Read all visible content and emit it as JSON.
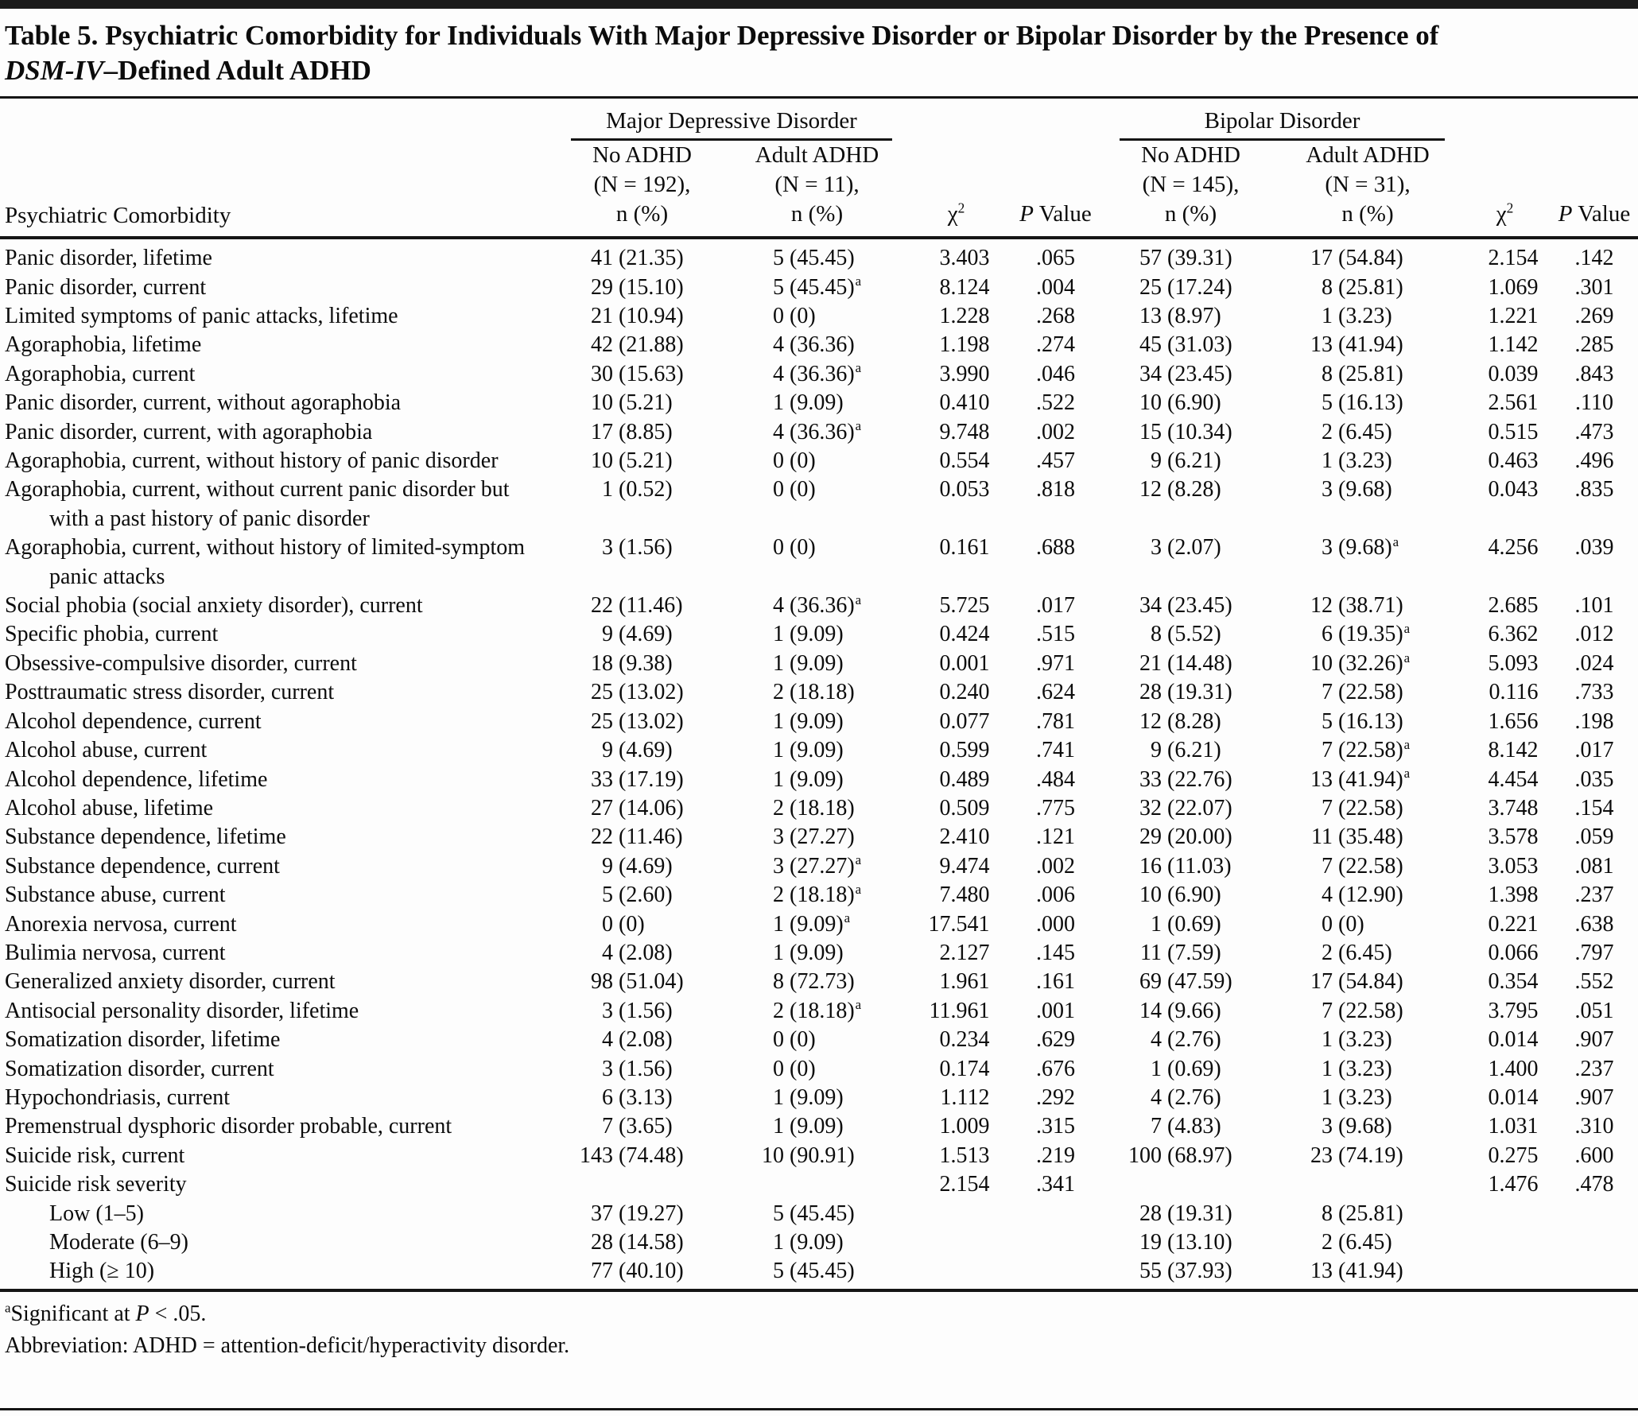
{
  "title": {
    "line1": "Table 5. Psychiatric Comorbidity for Individuals With Major Depressive Disorder or Bipolar Disorder by the Presence of",
    "line2_italic": "DSM-IV",
    "line2_rest": "–Defined Adult ADHD"
  },
  "header": {
    "stub": "Psychiatric Comorbidity",
    "group1": "Major Depressive Disorder",
    "group2": "Bipolar Disorder",
    "col_no_adhd_mdd": "No ADHD\n(N = 192),\nn (%)",
    "col_adult_adhd_mdd": "Adult ADHD\n(N = 11),\nn (%)",
    "col_no_adhd_bd": "No ADHD\n(N = 145),\nn (%)",
    "col_adult_adhd_bd": "Adult ADHD\n(N = 31),\nn (%)",
    "chi_base": "χ",
    "chi_sup": "2",
    "p_italic": "P",
    "p_rest": " Value"
  },
  "rows": [
    {
      "label": "Panic disorder, lifetime",
      "indent": false,
      "cells": [
        "41 (21.35)",
        "5 (45.45)",
        "3.403",
        ".065",
        "57 (39.31)",
        "17 (54.84)",
        "2.154",
        ".142"
      ]
    },
    {
      "label": "Panic disorder, current",
      "indent": false,
      "cells": [
        "29 (15.10)",
        "5 (45.45)^a",
        "8.124",
        ".004",
        "25 (17.24)",
        "8 (25.81)",
        "1.069",
        ".301"
      ]
    },
    {
      "label": "Limited symptoms of panic attacks, lifetime",
      "indent": false,
      "cells": [
        "21 (10.94)",
        "0 (0)",
        "1.228",
        ".268",
        "13 (8.97)",
        "1 (3.23)",
        "1.221",
        ".269"
      ]
    },
    {
      "label": "Agoraphobia, lifetime",
      "indent": false,
      "cells": [
        "42 (21.88)",
        "4 (36.36)",
        "1.198",
        ".274",
        "45 (31.03)",
        "13 (41.94)",
        "1.142",
        ".285"
      ]
    },
    {
      "label": "Agoraphobia, current",
      "indent": false,
      "cells": [
        "30 (15.63)",
        "4 (36.36)^a",
        "3.990",
        ".046",
        "34 (23.45)",
        "8 (25.81)",
        "0.039",
        ".843"
      ]
    },
    {
      "label": "Panic disorder, current, without agoraphobia",
      "indent": false,
      "cells": [
        "10 (5.21)",
        "1 (9.09)",
        "0.410",
        ".522",
        "10 (6.90)",
        "5 (16.13)",
        "2.561",
        ".110"
      ]
    },
    {
      "label": "Panic disorder, current, with agoraphobia",
      "indent": false,
      "cells": [
        "17 (8.85)",
        "4 (36.36)^a",
        "9.748",
        ".002",
        "15 (10.34)",
        "2 (6.45)",
        "0.515",
        ".473"
      ]
    },
    {
      "label": "Agoraphobia, current, without history of panic disorder",
      "indent": false,
      "cells": [
        "10 (5.21)",
        "0 (0)",
        "0.554",
        ".457",
        "9 (6.21)",
        "1 (3.23)",
        "0.463",
        ".496"
      ]
    },
    {
      "label": "Agoraphobia, current, without current panic disorder but with a past history of panic disorder",
      "indent": false,
      "cells": [
        "1 (0.52)",
        "0 (0)",
        "0.053",
        ".818",
        "12 (8.28)",
        "3 (9.68)",
        "0.043",
        ".835"
      ]
    },
    {
      "label": "Agoraphobia, current, without history of limited-symptom panic attacks",
      "indent": false,
      "cells": [
        "3 (1.56)",
        "0 (0)",
        "0.161",
        ".688",
        "3 (2.07)",
        "3 (9.68)^a",
        "4.256",
        ".039"
      ]
    },
    {
      "label": "Social phobia (social anxiety disorder), current",
      "indent": false,
      "cells": [
        "22 (11.46)",
        "4 (36.36)^a",
        "5.725",
        ".017",
        "34 (23.45)",
        "12 (38.71)",
        "2.685",
        ".101"
      ]
    },
    {
      "label": "Specific phobia, current",
      "indent": false,
      "cells": [
        "9 (4.69)",
        "1 (9.09)",
        "0.424",
        ".515",
        "8 (5.52)",
        "6 (19.35)^a",
        "6.362",
        ".012"
      ]
    },
    {
      "label": "Obsessive-compulsive disorder, current",
      "indent": false,
      "cells": [
        "18 (9.38)",
        "1 (9.09)",
        "0.001",
        ".971",
        "21 (14.48)",
        "10 (32.26)^a",
        "5.093",
        ".024"
      ]
    },
    {
      "label": "Posttraumatic stress disorder, current",
      "indent": false,
      "cells": [
        "25 (13.02)",
        "2 (18.18)",
        "0.240",
        ".624",
        "28 (19.31)",
        "7 (22.58)",
        "0.116",
        ".733"
      ]
    },
    {
      "label": "Alcohol dependence, current",
      "indent": false,
      "cells": [
        "25 (13.02)",
        "1 (9.09)",
        "0.077",
        ".781",
        "12 (8.28)",
        "5 (16.13)",
        "1.656",
        ".198"
      ]
    },
    {
      "label": "Alcohol abuse, current",
      "indent": false,
      "cells": [
        "9 (4.69)",
        "1 (9.09)",
        "0.599",
        ".741",
        "9 (6.21)",
        "7 (22.58)^a",
        "8.142",
        ".017"
      ]
    },
    {
      "label": "Alcohol dependence, lifetime",
      "indent": false,
      "cells": [
        "33 (17.19)",
        "1 (9.09)",
        "0.489",
        ".484",
        "33 (22.76)",
        "13 (41.94)^a",
        "4.454",
        ".035"
      ]
    },
    {
      "label": "Alcohol abuse, lifetime",
      "indent": false,
      "cells": [
        "27 (14.06)",
        "2 (18.18)",
        "0.509",
        ".775",
        "32 (22.07)",
        "7 (22.58)",
        "3.748",
        ".154"
      ]
    },
    {
      "label": "Substance dependence, lifetime",
      "indent": false,
      "cells": [
        "22 (11.46)",
        "3 (27.27)",
        "2.410",
        ".121",
        "29 (20.00)",
        "11 (35.48)",
        "3.578",
        ".059"
      ]
    },
    {
      "label": "Substance dependence, current",
      "indent": false,
      "cells": [
        "9 (4.69)",
        "3 (27.27)^a",
        "9.474",
        ".002",
        "16 (11.03)",
        "7 (22.58)",
        "3.053",
        ".081"
      ]
    },
    {
      "label": "Substance abuse, current",
      "indent": false,
      "cells": [
        "5 (2.60)",
        "2 (18.18)^a",
        "7.480",
        ".006",
        "10 (6.90)",
        "4 (12.90)",
        "1.398",
        ".237"
      ]
    },
    {
      "label": "Anorexia nervosa, current",
      "indent": false,
      "cells": [
        "0 (0)",
        "1 (9.09)^a",
        "17.541",
        ".000",
        "1 (0.69)",
        "0 (0)",
        "0.221",
        ".638"
      ]
    },
    {
      "label": "Bulimia nervosa, current",
      "indent": false,
      "cells": [
        "4 (2.08)",
        "1 (9.09)",
        "2.127",
        ".145",
        "11 (7.59)",
        "2 (6.45)",
        "0.066",
        ".797"
      ]
    },
    {
      "label": "Generalized anxiety disorder, current",
      "indent": false,
      "cells": [
        "98 (51.04)",
        "8 (72.73)",
        "1.961",
        ".161",
        "69 (47.59)",
        "17 (54.84)",
        "0.354",
        ".552"
      ]
    },
    {
      "label": "Antisocial personality disorder, lifetime",
      "indent": false,
      "cells": [
        "3 (1.56)",
        "2 (18.18)^a",
        "11.961",
        ".001",
        "14 (9.66)",
        "7 (22.58)",
        "3.795",
        ".051"
      ]
    },
    {
      "label": "Somatization disorder, lifetime",
      "indent": false,
      "cells": [
        "4 (2.08)",
        "0 (0)",
        "0.234",
        ".629",
        "4 (2.76)",
        "1 (3.23)",
        "0.014",
        ".907"
      ]
    },
    {
      "label": "Somatization disorder, current",
      "indent": false,
      "cells": [
        "3 (1.56)",
        "0 (0)",
        "0.174",
        ".676",
        "1 (0.69)",
        "1 (3.23)",
        "1.400",
        ".237"
      ]
    },
    {
      "label": "Hypochondriasis, current",
      "indent": false,
      "cells": [
        "6 (3.13)",
        "1 (9.09)",
        "1.112",
        ".292",
        "4 (2.76)",
        "1 (3.23)",
        "0.014",
        ".907"
      ]
    },
    {
      "label": "Premenstrual dysphoric disorder probable, current",
      "indent": false,
      "cells": [
        "7 (3.65)",
        "1 (9.09)",
        "1.009",
        ".315",
        "7 (4.83)",
        "3 (9.68)",
        "1.031",
        ".310"
      ]
    },
    {
      "label": "Suicide risk, current",
      "indent": false,
      "cells": [
        "143 (74.48)",
        "10 (90.91)",
        "1.513",
        ".219",
        "100 (68.97)",
        "23 (74.19)",
        "0.275",
        ".600"
      ]
    },
    {
      "label": "Suicide risk severity",
      "indent": false,
      "cells": [
        "",
        "",
        "2.154",
        ".341",
        "",
        "",
        "1.476",
        ".478"
      ]
    },
    {
      "label": "Low (1–5)",
      "indent": true,
      "cells": [
        "37 (19.27)",
        "5 (45.45)",
        "",
        "",
        "28 (19.31)",
        "8 (25.81)",
        "",
        ""
      ]
    },
    {
      "label": "Moderate (6–9)",
      "indent": true,
      "cells": [
        "28 (14.58)",
        "1 (9.09)",
        "",
        "",
        "19 (13.10)",
        "2 (6.45)",
        "",
        ""
      ]
    },
    {
      "label": "High (≥ 10)",
      "indent": true,
      "cells": [
        "77 (40.10)",
        "5 (45.45)",
        "",
        "",
        "55 (37.93)",
        "13 (41.94)",
        "",
        ""
      ]
    }
  ],
  "footnotes": {
    "sig_sup": "a",
    "sig_pre": "Significant at ",
    "sig_italic": "P",
    "sig_post": " < .05.",
    "abbreviation": "Abbreviation: ADHD = attention-deficit/hyperactivity disorder."
  }
}
